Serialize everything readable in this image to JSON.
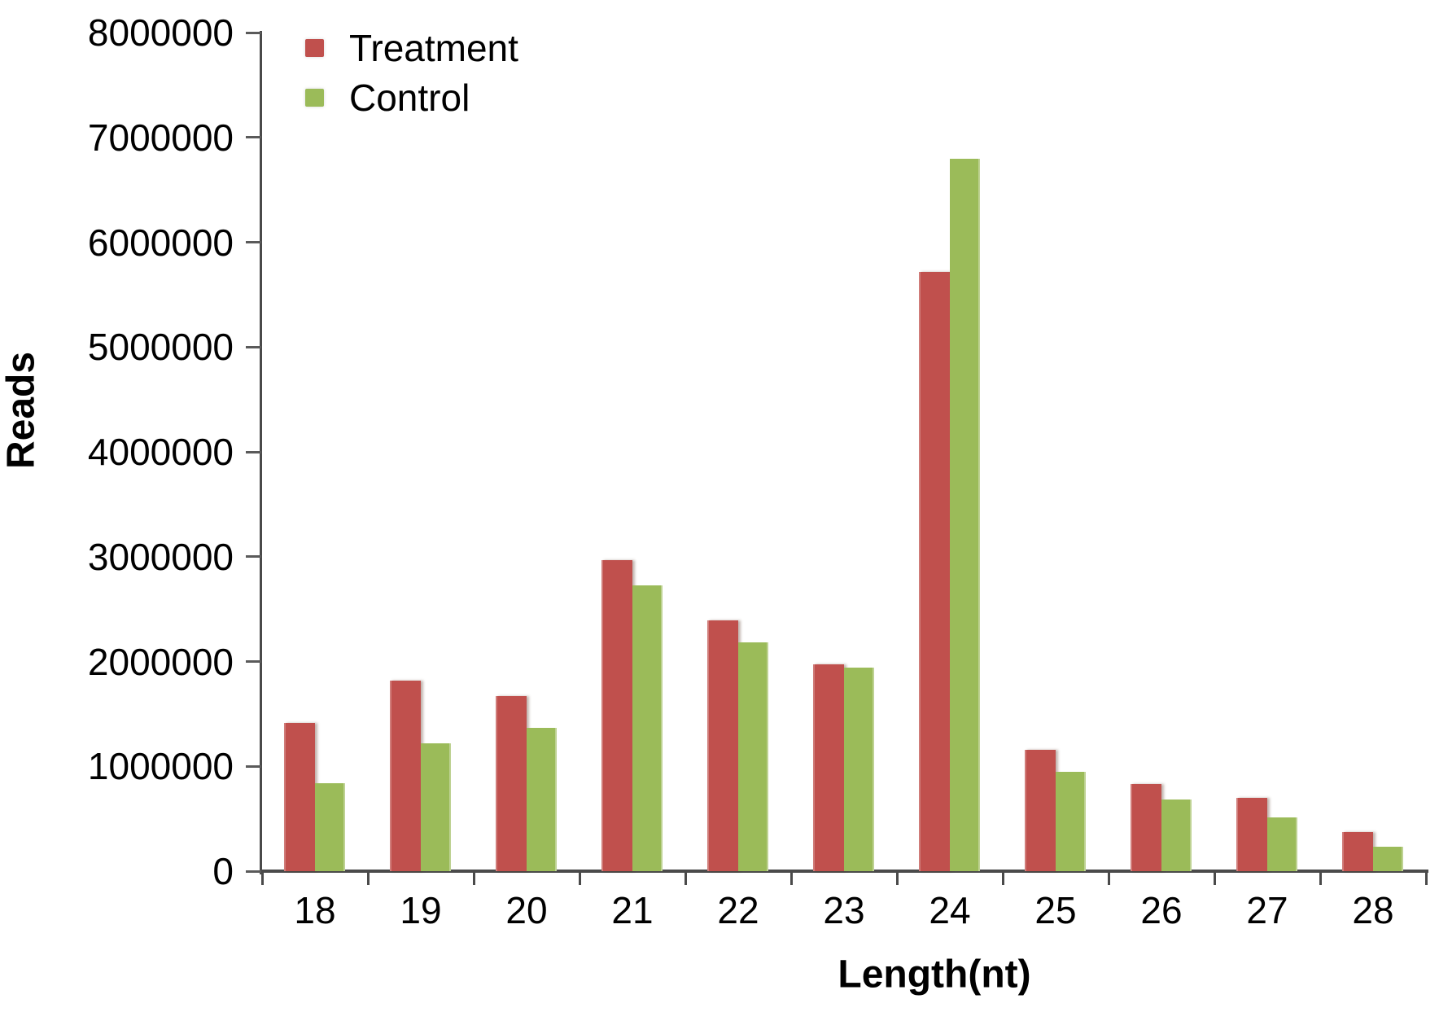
{
  "figure": {
    "background": "#ffffff",
    "text_color": "#000000",
    "axis_color": "#4a4a4a"
  },
  "chart_data": {
    "type": "bar",
    "title": "",
    "xlabel": "Length(nt)",
    "ylabel": "Reads",
    "categories": [
      "18",
      "19",
      "20",
      "21",
      "22",
      "23",
      "24",
      "25",
      "26",
      "27",
      "28"
    ],
    "series": [
      {
        "name": "Treatment",
        "color": "#c0504d",
        "values": [
          1410000,
          1820000,
          1670000,
          2970000,
          2390000,
          1970000,
          5720000,
          1160000,
          830000,
          700000,
          370000
        ]
      },
      {
        "name": "Control",
        "color": "#9bbb59",
        "values": [
          840000,
          1220000,
          1370000,
          2730000,
          2180000,
          1940000,
          6800000,
          950000,
          680000,
          510000,
          230000
        ]
      }
    ],
    "ylim": [
      0,
      8000000
    ],
    "y_ticks": [
      0,
      1000000,
      2000000,
      3000000,
      4000000,
      5000000,
      6000000,
      7000000,
      8000000
    ],
    "y_tick_labels": [
      "0",
      "1000000",
      "2000000",
      "3000000",
      "4000000",
      "5000000",
      "6000000",
      "7000000",
      "8000000"
    ],
    "legend_position": "top-left",
    "legend_entries": [
      "Treatment",
      "Control"
    ],
    "grid": false
  }
}
